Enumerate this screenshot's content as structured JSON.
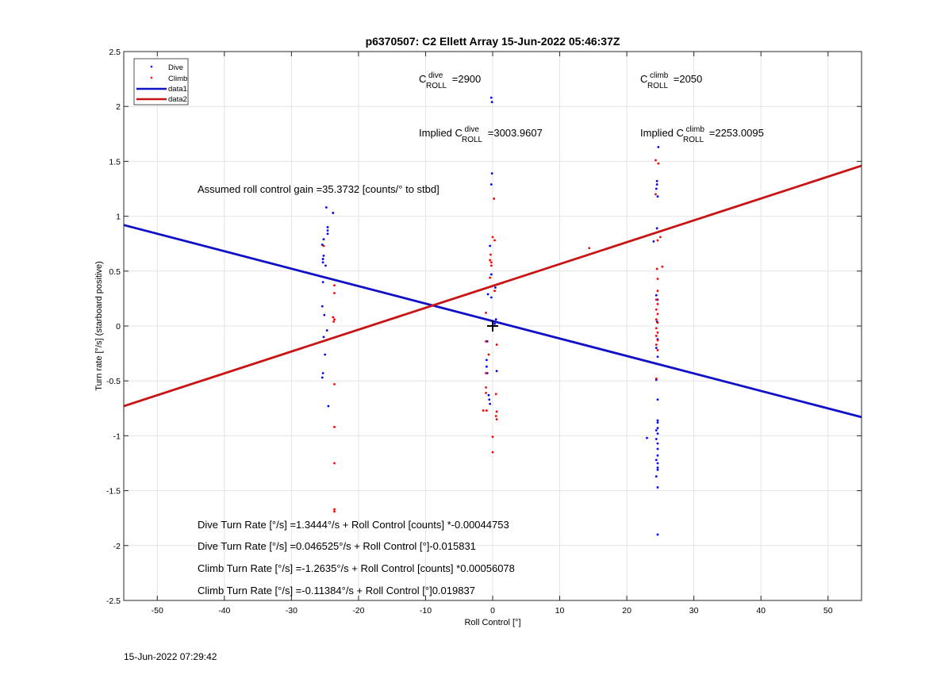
{
  "print_timestamp": "15-Jun-2022 07:29:42",
  "chart_data": {
    "type": "scatter",
    "title": "p6370507: C2 Ellett Array 15-Jun-2022 05:46:37Z",
    "xlabel": "Roll Control [°]",
    "ylabel": "Turn rate [°/s] (starboard positive)",
    "xlim": [
      -55,
      55
    ],
    "ylim": [
      -2.5,
      2.5
    ],
    "xticks": [
      -50,
      -40,
      -30,
      -20,
      -10,
      0,
      10,
      20,
      30,
      40,
      50
    ],
    "yticks": [
      -2.5,
      -2,
      -1.5,
      -1,
      -0.5,
      0,
      0.5,
      1,
      1.5,
      2,
      2.5
    ],
    "grid": true,
    "legend_position": "top-left",
    "legend": [
      {
        "label": "Dive",
        "kind": "dot",
        "color": "#0000ff"
      },
      {
        "label": "Climb",
        "kind": "dot",
        "color": "#ff0000"
      },
      {
        "label": "data1",
        "kind": "line",
        "color": "#1010c8"
      },
      {
        "label": "data2",
        "kind": "line",
        "color": "#c81414"
      }
    ],
    "lines": [
      {
        "name": "data1",
        "color": "#1010c8",
        "points": [
          [
            -55,
            0.92
          ],
          [
            55,
            -0.83
          ]
        ]
      },
      {
        "name": "data2",
        "color": "#c81414",
        "points": [
          [
            -55,
            -0.73
          ],
          [
            55,
            1.46
          ]
        ]
      }
    ],
    "series": [
      {
        "name": "Dive",
        "color": "#0000ff",
        "points": [
          [
            -24.8,
            1.08
          ],
          [
            -23.8,
            1.03
          ],
          [
            -24.6,
            0.9
          ],
          [
            -24.6,
            0.87
          ],
          [
            -24.6,
            0.84
          ],
          [
            -25.2,
            0.79
          ],
          [
            -25.4,
            0.74
          ],
          [
            -25.2,
            0.64
          ],
          [
            -25.3,
            0.61
          ],
          [
            -25.3,
            0.58
          ],
          [
            -24.9,
            0.55
          ],
          [
            -25.3,
            0.4
          ],
          [
            -25.4,
            0.18
          ],
          [
            -25.1,
            0.1
          ],
          [
            -24.7,
            -0.04
          ],
          [
            -25.2,
            -0.1
          ],
          [
            -25.0,
            -0.26
          ],
          [
            -25.3,
            -0.43
          ],
          [
            -25.4,
            -0.47
          ],
          [
            -24.5,
            -0.73
          ],
          [
            -0.2,
            2.08
          ],
          [
            -0.1,
            2.04
          ],
          [
            -0.1,
            1.39
          ],
          [
            -0.2,
            1.29
          ],
          [
            -0.4,
            0.73
          ],
          [
            -0.2,
            0.47
          ],
          [
            -0.7,
            0.29
          ],
          [
            -0.2,
            0.26
          ],
          [
            0.4,
            0.35
          ],
          [
            0.5,
            0.06
          ],
          [
            0.3,
            0.02
          ],
          [
            -0.8,
            -0.14
          ],
          [
            -0.9,
            -0.31
          ],
          [
            -0.9,
            -0.37
          ],
          [
            -0.8,
            -0.43
          ],
          [
            -0.6,
            -0.63
          ],
          [
            -0.5,
            -0.67
          ],
          [
            -0.4,
            -0.71
          ],
          [
            0.6,
            -0.41
          ],
          [
            24.7,
            1.63
          ],
          [
            24.5,
            1.32
          ],
          [
            24.5,
            1.29
          ],
          [
            24.4,
            1.25
          ],
          [
            24.6,
            1.18
          ],
          [
            24.5,
            0.89
          ],
          [
            24.0,
            0.77
          ],
          [
            24.4,
            0.28
          ],
          [
            24.6,
            0.24
          ],
          [
            24.5,
            0.04
          ],
          [
            24.6,
            -0.12
          ],
          [
            24.4,
            -0.2
          ],
          [
            24.6,
            -0.28
          ],
          [
            24.4,
            -0.49
          ],
          [
            24.6,
            -0.67
          ],
          [
            24.6,
            -0.86
          ],
          [
            24.6,
            -0.88
          ],
          [
            24.6,
            -0.93
          ],
          [
            24.4,
            -0.95
          ],
          [
            24.6,
            -0.98
          ],
          [
            24.4,
            -1.03
          ],
          [
            24.6,
            -1.07
          ],
          [
            24.6,
            -1.12
          ],
          [
            24.6,
            -1.18
          ],
          [
            24.4,
            -1.22
          ],
          [
            24.6,
            -1.25
          ],
          [
            24.6,
            -1.29
          ],
          [
            24.6,
            -1.31
          ],
          [
            24.4,
            -1.37
          ],
          [
            24.6,
            -1.47
          ],
          [
            23.0,
            -1.02
          ],
          [
            24.6,
            -1.9
          ]
        ]
      },
      {
        "name": "Climb",
        "color": "#ff0000",
        "points": [
          [
            -25.2,
            0.73
          ],
          [
            -23.6,
            0.37
          ],
          [
            -23.6,
            0.3
          ],
          [
            -23.8,
            0.08
          ],
          [
            -23.6,
            0.06
          ],
          [
            -23.7,
            0.04
          ],
          [
            -23.6,
            -0.53
          ],
          [
            -23.6,
            -0.92
          ],
          [
            -23.6,
            -1.25
          ],
          [
            -23.6,
            -1.67
          ],
          [
            -23.6,
            -1.69
          ],
          [
            0.2,
            1.16
          ],
          [
            0.0,
            0.81
          ],
          [
            0.3,
            0.78
          ],
          [
            -0.3,
            0.65
          ],
          [
            -0.4,
            0.6
          ],
          [
            -0.2,
            0.58
          ],
          [
            -0.2,
            0.55
          ],
          [
            -0.4,
            0.44
          ],
          [
            0.3,
            0.32
          ],
          [
            -1.0,
            0.12
          ],
          [
            0.6,
            -0.17
          ],
          [
            -0.6,
            -0.26
          ],
          [
            -1.0,
            -0.14
          ],
          [
            -1.0,
            -0.43
          ],
          [
            -1.0,
            -0.56
          ],
          [
            -1.0,
            -0.61
          ],
          [
            0.5,
            -0.62
          ],
          [
            -1.4,
            -0.77
          ],
          [
            -0.9,
            -0.77
          ],
          [
            0.6,
            -0.78
          ],
          [
            0.5,
            -0.82
          ],
          [
            0.6,
            -0.85
          ],
          [
            0.0,
            -1.01
          ],
          [
            0.0,
            -1.15
          ],
          [
            14.4,
            0.71
          ],
          [
            24.3,
            1.51
          ],
          [
            24.7,
            1.48
          ],
          [
            24.3,
            1.2
          ],
          [
            25.0,
            0.81
          ],
          [
            24.6,
            0.78
          ],
          [
            25.3,
            0.54
          ],
          [
            24.5,
            0.52
          ],
          [
            24.6,
            0.43
          ],
          [
            24.6,
            0.32
          ],
          [
            24.4,
            0.24
          ],
          [
            24.6,
            0.2
          ],
          [
            24.4,
            0.15
          ],
          [
            24.6,
            0.11
          ],
          [
            24.4,
            0.06
          ],
          [
            24.6,
            0.03
          ],
          [
            24.4,
            -0.02
          ],
          [
            24.6,
            -0.06
          ],
          [
            24.4,
            -0.09
          ],
          [
            24.6,
            -0.13
          ],
          [
            24.4,
            -0.17
          ],
          [
            24.6,
            -0.22
          ],
          [
            24.4,
            -0.48
          ]
        ]
      }
    ],
    "marker": {
      "x": 0,
      "y": 0,
      "symbol": "+"
    },
    "annotations": {
      "c_dive": {
        "base": "C",
        "sup": "dive",
        "sub": "ROLL",
        "value": "=2900"
      },
      "c_climb": {
        "base": "C",
        "sup": "climb",
        "sub": "ROLL",
        "value": "=2050"
      },
      "implied_dive": {
        "prefix": "Implied C",
        "sup": "dive",
        "sub": "ROLL",
        "value": "=3003.9607"
      },
      "implied_climb": {
        "prefix": "Implied C",
        "sup": "climb",
        "sub": "ROLL",
        "value": "=2253.0095"
      },
      "gain": "Assumed roll control gain =35.3732 [counts/° to stbd]",
      "equations": [
        "Dive Turn Rate [°/s] =1.3444°/s + Roll Control [counts] *-0.00044753",
        "Dive Turn Rate [°/s] =0.046525°/s + Roll Control [°]-0.015831",
        "Climb Turn Rate [°/s] =-1.2635°/s + Roll Control [counts] *0.00056078",
        "Climb Turn Rate [°/s] =-0.11384°/s + Roll Control [°]0.019837"
      ]
    }
  }
}
